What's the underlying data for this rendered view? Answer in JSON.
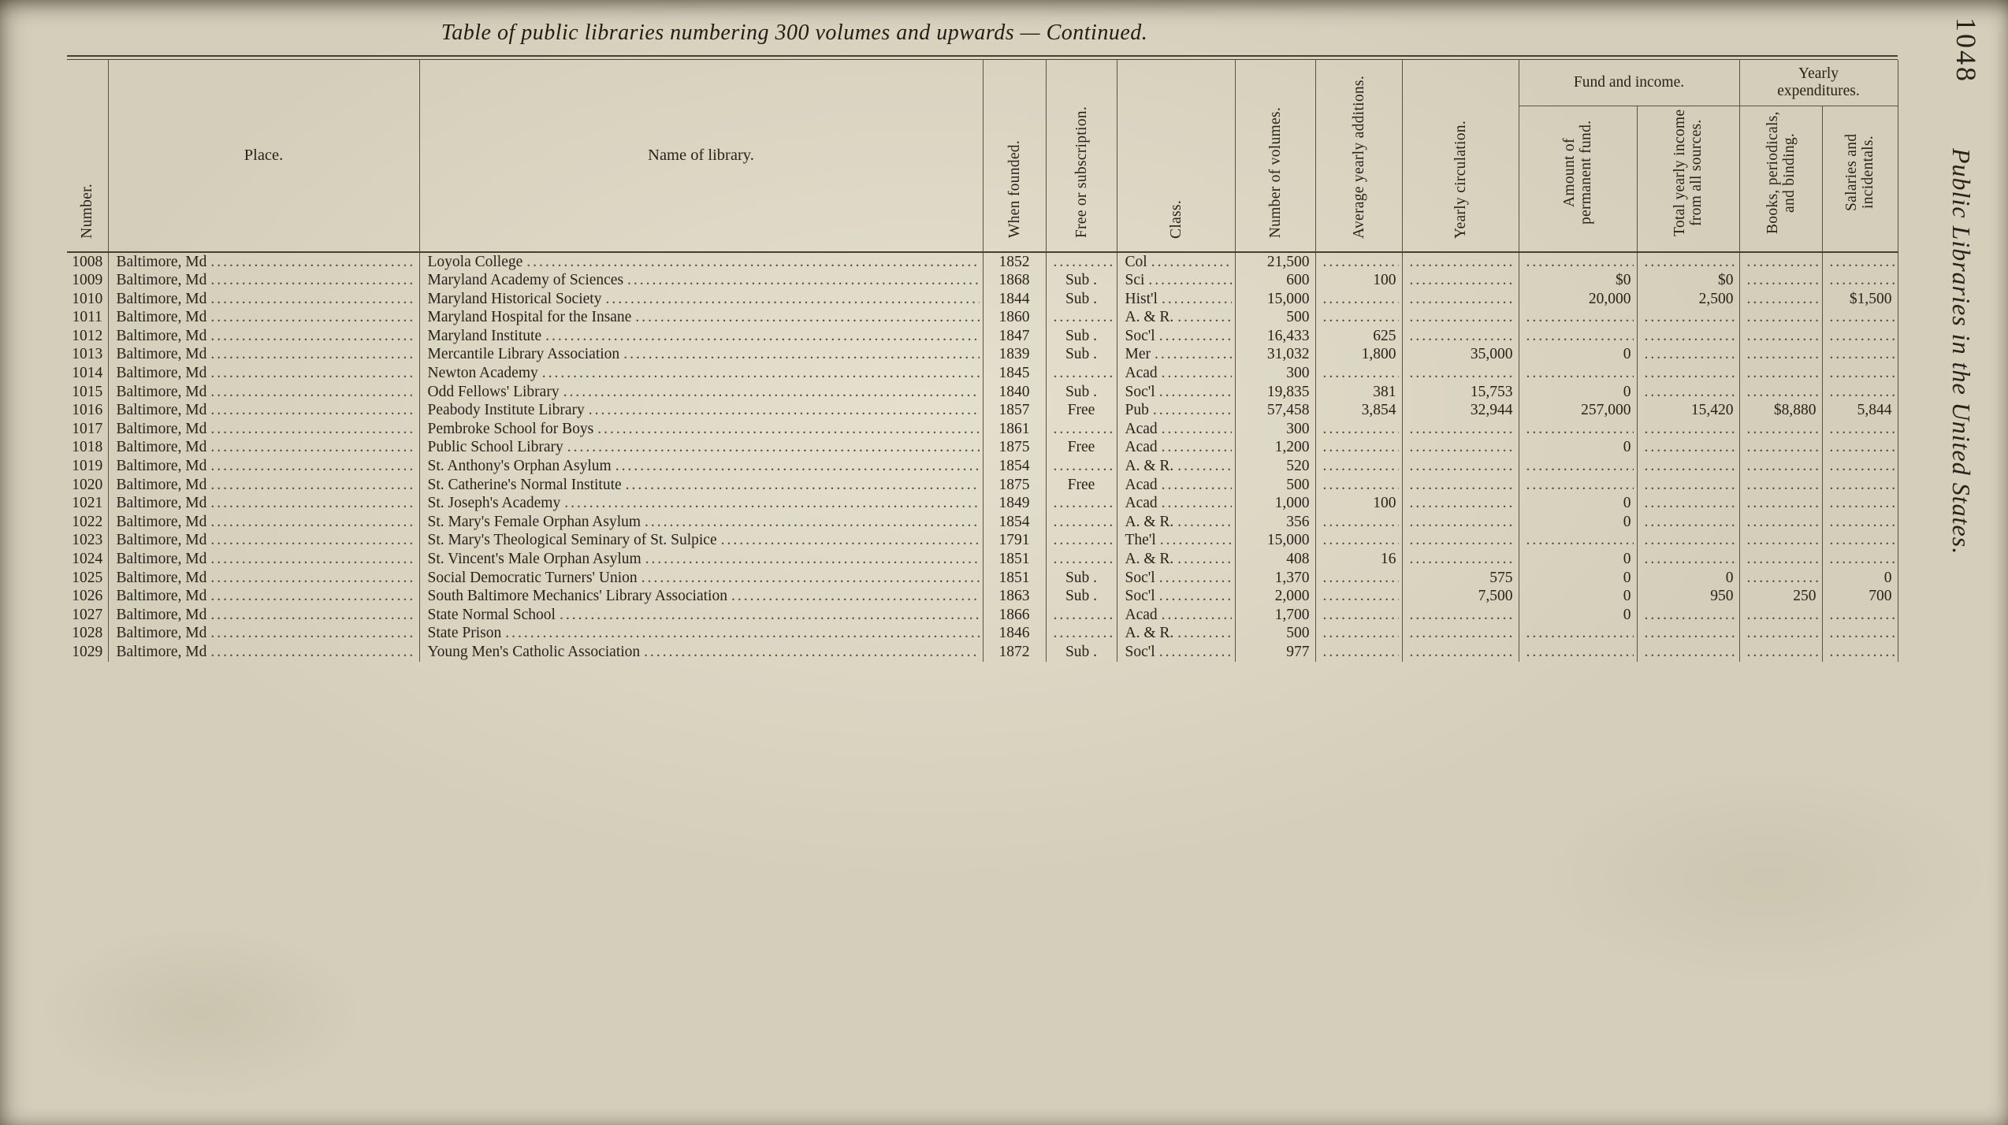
{
  "page": {
    "title": "Table of public libraries numbering 300 volumes and upwards — Continued.",
    "page_number": "1048",
    "running_title": "Public Libraries in the United States."
  },
  "table": {
    "headers": {
      "number": "Number.",
      "place": "Place.",
      "name": "Name of library.",
      "founded": "When founded.",
      "free_or_subscription": "Free or subscription.",
      "class": "Class.",
      "volumes": "Number of volumes.",
      "additions": "Average yearly additions.",
      "circulation": "Yearly circulation.",
      "fund_group": "Fund and income.",
      "permanent_fund": "Amount of permanent fund.",
      "total_income": "Total yearly income from all sources.",
      "expenditures_group": "Yearly expenditures.",
      "books_binding": "Books, periodicals, and binding.",
      "salaries": "Salaries and incidentals."
    },
    "rows": [
      [
        "1008",
        "Baltimore, Md",
        "Loyola College",
        "1852",
        "",
        "Col",
        "21,500",
        "",
        "",
        "",
        "",
        "",
        ""
      ],
      [
        "1009",
        "Baltimore, Md",
        "Maryland Academy of Sciences",
        "1868",
        "Sub .",
        "Sci",
        "600",
        "100",
        "",
        "$0",
        "$0",
        "",
        ""
      ],
      [
        "1010",
        "Baltimore, Md",
        "Maryland Historical Society",
        "1844",
        "Sub .",
        "Hist'l",
        "15,000",
        "",
        "",
        "20,000",
        "2,500",
        "",
        "$1,500"
      ],
      [
        "1011",
        "Baltimore, Md",
        "Maryland Hospital for the Insane",
        "1860",
        "",
        "A. & R.",
        "500",
        "",
        "",
        "",
        "",
        "",
        ""
      ],
      [
        "1012",
        "Baltimore, Md",
        "Maryland Institute",
        "1847",
        "Sub .",
        "Soc'l",
        "16,433",
        "625",
        "",
        "",
        "",
        "",
        ""
      ],
      [
        "1013",
        "Baltimore, Md",
        "Mercantile Library Association",
        "1839",
        "Sub .",
        "Mer",
        "31,032",
        "1,800",
        "35,000",
        "0",
        "",
        "",
        ""
      ],
      [
        "1014",
        "Baltimore, Md",
        "Newton Academy",
        "1845",
        "",
        "Acad",
        "300",
        "",
        "",
        "",
        "",
        "",
        ""
      ],
      [
        "1015",
        "Baltimore, Md",
        "Odd Fellows' Library",
        "1840",
        "Sub .",
        "Soc'l",
        "19,835",
        "381",
        "15,753",
        "0",
        "",
        "",
        ""
      ],
      [
        "1016",
        "Baltimore, Md",
        "Peabody Institute Library",
        "1857",
        "Free",
        "Pub",
        "57,458",
        "3,854",
        "32,944",
        "257,000",
        "15,420",
        "$8,880",
        "5,844"
      ],
      [
        "1017",
        "Baltimore, Md",
        "Pembroke School for Boys",
        "1861",
        "",
        "Acad",
        "300",
        "",
        "",
        "",
        "",
        "",
        ""
      ],
      [
        "1018",
        "Baltimore, Md",
        "Public School Library",
        "1875",
        "Free",
        "Acad",
        "1,200",
        "",
        "",
        "0",
        "",
        "",
        ""
      ],
      [
        "1019",
        "Baltimore, Md",
        "St. Anthony's Orphan Asylum",
        "1854",
        "",
        "A. & R.",
        "520",
        "",
        "",
        "",
        "",
        "",
        ""
      ],
      [
        "1020",
        "Baltimore, Md",
        "St. Catherine's Normal Institute",
        "1875",
        "Free",
        "Acad",
        "500",
        "",
        "",
        "",
        "",
        "",
        ""
      ],
      [
        "1021",
        "Baltimore, Md",
        "St. Joseph's Academy",
        "1849",
        "",
        "Acad",
        "1,000",
        "100",
        "",
        "0",
        "",
        "",
        ""
      ],
      [
        "1022",
        "Baltimore, Md",
        "St. Mary's Female Orphan Asylum",
        "1854",
        "",
        "A. & R.",
        "356",
        "",
        "",
        "0",
        "",
        "",
        ""
      ],
      [
        "1023",
        "Baltimore, Md",
        "St. Mary's Theological Seminary of St. Sulpice",
        "1791",
        "",
        "The'l",
        "15,000",
        "",
        "",
        "",
        "",
        "",
        ""
      ],
      [
        "1024",
        "Baltimore, Md",
        "St. Vincent's Male Orphan Asylum",
        "1851",
        "",
        "A. & R.",
        "408",
        "16",
        "",
        "0",
        "",
        "",
        ""
      ],
      [
        "1025",
        "Baltimore, Md",
        "Social Democratic Turners' Union",
        "1851",
        "Sub .",
        "Soc'l",
        "1,370",
        "",
        "575",
        "0",
        "0",
        "",
        "0"
      ],
      [
        "1026",
        "Baltimore, Md",
        "South Baltimore Mechanics' Library Association",
        "1863",
        "Sub .",
        "Soc'l",
        "2,000",
        "",
        "7,500",
        "0",
        "950",
        "250",
        "700"
      ],
      [
        "1027",
        "Baltimore, Md",
        "State Normal School",
        "1866",
        "",
        "Acad",
        "1,700",
        "",
        "",
        "0",
        "",
        "",
        ""
      ],
      [
        "1028",
        "Baltimore, Md",
        "State Prison",
        "1846",
        "",
        "A. & R.",
        "500",
        "",
        "",
        "",
        "",
        "",
        ""
      ],
      [
        "1029",
        "Baltimore, Md",
        "Young Men's Catholic Association",
        "1872",
        "Sub .",
        "Soc'l",
        "977",
        "",
        "",
        "",
        "",
        "",
        ""
      ]
    ]
  }
}
